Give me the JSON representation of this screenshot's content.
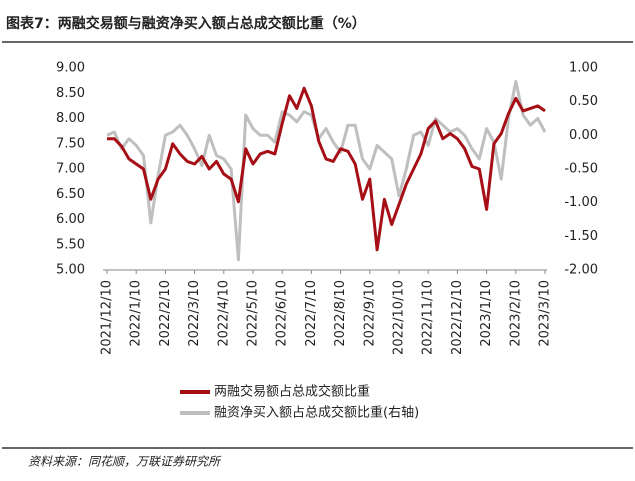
{
  "chart_data": {
    "type": "line",
    "title": "图表7：两融交易额与融资净买入额占总成交额比重（%）",
    "source": "资料来源：同花顺，万联证券研究所",
    "categories": [
      "2021/12/10",
      null,
      null,
      null,
      "2022/1/10",
      null,
      null,
      null,
      "2022/2/10",
      null,
      null,
      null,
      "2022/3/10",
      null,
      null,
      null,
      "2022/4/10",
      null,
      null,
      null,
      "2022/5/10",
      null,
      null,
      null,
      "2022/6/10",
      null,
      null,
      null,
      "2022/7/10",
      null,
      null,
      null,
      "2022/8/10",
      null,
      null,
      null,
      "2022/9/10",
      null,
      null,
      null,
      "2022/10/10",
      null,
      null,
      null,
      "2022/11/10",
      null,
      null,
      null,
      "2022/12/10",
      null,
      null,
      null,
      "2023/1/10",
      null,
      null,
      null,
      "2023/2/10",
      null,
      null,
      null,
      "2023/3/10"
    ],
    "series": [
      {
        "name": "两融交易额占总成交额比重",
        "color": "#a50f15",
        "values": [
          7.6,
          7.6,
          7.45,
          7.2,
          7.1,
          7.0,
          6.4,
          6.8,
          7.0,
          7.5,
          7.3,
          7.15,
          7.1,
          7.25,
          7.0,
          7.15,
          6.9,
          6.8,
          6.35,
          7.4,
          7.1,
          7.3,
          7.35,
          7.3,
          7.9,
          8.45,
          8.2,
          8.6,
          8.25,
          7.55,
          7.2,
          7.15,
          7.4,
          7.35,
          7.1,
          6.4,
          6.8,
          5.4,
          6.4,
          5.9,
          6.3,
          6.7,
          7.0,
          7.3,
          7.8,
          7.95,
          7.6,
          7.7,
          7.6,
          7.4,
          7.05,
          7.0,
          6.2,
          7.5,
          7.7,
          8.1,
          8.4,
          8.15,
          8.2,
          8.25,
          8.15
        ]
      },
      {
        "name": "融资净买入额占总成交额比重(右轴)",
        "color": "#bfbfbf",
        "axis": "y2",
        "values": [
          0.0,
          0.05,
          -0.2,
          -0.05,
          -0.15,
          -0.3,
          -1.3,
          -0.6,
          0.0,
          0.05,
          0.15,
          0.0,
          -0.2,
          -0.45,
          0.0,
          -0.3,
          -0.35,
          -0.5,
          -1.85,
          0.3,
          0.1,
          0.0,
          0.0,
          -0.1,
          0.35,
          0.3,
          0.2,
          0.35,
          0.3,
          -0.05,
          0.1,
          -0.1,
          -0.25,
          0.15,
          0.15,
          -0.35,
          -0.5,
          -0.15,
          -0.25,
          -0.35,
          -0.9,
          -0.5,
          0.0,
          0.05,
          -0.15,
          0.25,
          0.15,
          0.05,
          0.1,
          0.0,
          -0.2,
          -0.35,
          0.1,
          -0.1,
          -0.65,
          0.25,
          0.8,
          0.3,
          0.15,
          0.25,
          0.05
        ]
      }
    ],
    "ylim": [
      5,
      9
    ],
    "yticks": [
      {
        "value": 5,
        "label": "5.00"
      },
      {
        "value": 5.5,
        "label": "5.50"
      },
      {
        "value": 6,
        "label": "6.00"
      },
      {
        "value": 6.5,
        "label": "6.50"
      },
      {
        "value": 7,
        "label": "7.00"
      },
      {
        "value": 7.5,
        "label": "7.50"
      },
      {
        "value": 8,
        "label": "8.00"
      },
      {
        "value": 8.5,
        "label": "8.50"
      },
      {
        "value": 9,
        "label": "9.00"
      }
    ],
    "y2lim": [
      -2,
      1
    ],
    "y2ticks": [
      {
        "value": -2,
        "label": "-2.00"
      },
      {
        "value": -1.5,
        "label": "-1.50"
      },
      {
        "value": -1,
        "label": "-1.00"
      },
      {
        "value": -0.5,
        "label": "-0.50"
      },
      {
        "value": 0,
        "label": "0.00"
      },
      {
        "value": 0.5,
        "label": "0.50"
      },
      {
        "value": 1,
        "label": "1.00"
      }
    ],
    "grid": false
  }
}
